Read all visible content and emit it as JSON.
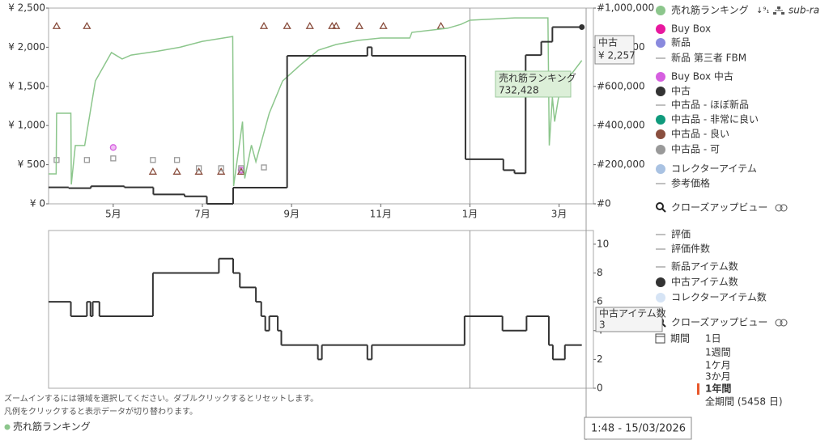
{
  "chart_data": [
    {
      "type": "line",
      "xlim": [
        3.55,
        15.77
      ],
      "xticks": [
        {
          "value": 5,
          "label": "5月"
        },
        {
          "value": 7,
          "label": "7月"
        },
        {
          "value": 9,
          "label": "9月"
        },
        {
          "value": 11,
          "label": "11月"
        },
        {
          "value": 13,
          "label": "1月"
        },
        {
          "value": 15,
          "label": "3月"
        }
      ],
      "x_divider": 13,
      "ylim": [
        0,
        2500
      ],
      "yticks": [
        {
          "value": 0,
          "label": "¥ 0"
        },
        {
          "value": 500,
          "label": "¥ 500"
        },
        {
          "value": 1000,
          "label": "¥ 1,000"
        },
        {
          "value": 1500,
          "label": "¥ 1,500"
        },
        {
          "value": 2000,
          "label": "¥ 2,000"
        },
        {
          "value": 2500,
          "label": "¥ 2,500"
        }
      ],
      "y2lim": [
        0,
        1000000
      ],
      "y2ticks": [
        {
          "value": 0,
          "label": "#0"
        },
        {
          "value": 200000,
          "label": "#200,000"
        },
        {
          "value": 400000,
          "label": "#400,000"
        },
        {
          "value": 600000,
          "label": "#600,000"
        },
        {
          "value": 800000,
          "label": "#800,000"
        },
        {
          "value": 1000000,
          "label": "#1,000,000"
        }
      ],
      "series": [
        {
          "name": "売れ筋ランキング",
          "color": "#8cc68c",
          "legend": "dot",
          "axis": "y2",
          "x": [
            3.55,
            3.72,
            3.73,
            4.05,
            4.06,
            4.15,
            4.36,
            4.6,
            4.96,
            5.2,
            5.4,
            6.0,
            6.5,
            7.0,
            7.68,
            7.7,
            7.9,
            7.95,
            8.1,
            8.2,
            8.5,
            8.8,
            9.2,
            9.6,
            10.0,
            10.5,
            11.0,
            11.65,
            11.7,
            12.5,
            12.8,
            13.0,
            14.0,
            14.75,
            14.78,
            14.85,
            14.9,
            15.0,
            15.2,
            15.51
          ],
          "values": [
            153000,
            153000,
            463000,
            463000,
            99000,
            298000,
            298000,
            628000,
            773000,
            740000,
            760000,
            780000,
            800000,
            830000,
            855000,
            91000,
            420000,
            130000,
            300000,
            215000,
            463000,
            628000,
            710000,
            785000,
            814000,
            835000,
            847000,
            847000,
            876000,
            897000,
            917000,
            938000,
            950000,
            950000,
            298000,
            545000,
            420000,
            560000,
            640000,
            732428
          ]
        },
        {
          "name": "Buy Box",
          "color": "#e8189e",
          "legend": "dot"
        },
        {
          "name": "新品",
          "color": "#8a8ade",
          "legend": "dot"
        },
        {
          "name": "新品 第三者 FBM",
          "color": "#aaaaaa",
          "legend": "line"
        },
        {
          "name": "Buy Box 中古",
          "color": "#d65fe0",
          "legend": "dot",
          "marker": "circle",
          "x": [
            5.0,
            7.87
          ],
          "values": [
            720,
            430
          ]
        },
        {
          "name": "中古",
          "color": "#333333",
          "legend": "dot",
          "step": true,
          "x": [
            3.55,
            4.0,
            4.5,
            5.25,
            5.9,
            6.6,
            7.1,
            7.69,
            8.9,
            10.7,
            10.8,
            12.9,
            13.75,
            14.0,
            14.25,
            14.6,
            14.85,
            15.51
          ],
          "values": [
            210,
            200,
            225,
            210,
            120,
            95,
            0,
            207,
            1890,
            2000,
            1890,
            570,
            430,
            390,
            1900,
            2070,
            2257,
            2257
          ]
        },
        {
          "name": "中古品 - ほぼ新品",
          "color": "#aaaaaa",
          "legend": "line"
        },
        {
          "name": "中古品 - 非常に良い",
          "color": "#0f9a7c",
          "legend": "dot"
        },
        {
          "name": "中古品 - 良い",
          "color": "#8a4f3f",
          "legend": "dot",
          "marker": "triangle",
          "x": [
            3.73,
            4.41,
            5.89,
            6.43,
            6.92,
            7.42,
            7.87,
            8.38,
            8.9,
            9.41,
            9.91,
            10.0,
            10.52,
            11.06,
            12.35
          ],
          "values": [
            2270,
            2270,
            410,
            410,
            410,
            410,
            410,
            2270,
            2270,
            2270,
            2270,
            2270,
            2270,
            2270,
            2270
          ]
        },
        {
          "name": "中古品 - 可",
          "color": "#999999",
          "legend": "dot",
          "marker": "square",
          "x": [
            3.73,
            4.41,
            5.0,
            5.89,
            6.43,
            6.92,
            7.42,
            7.87,
            8.38
          ],
          "values": [
            560,
            560,
            580,
            560,
            560,
            455,
            455,
            455,
            465
          ]
        },
        {
          "name": "コレクターアイテム",
          "color": "#a9c2e2",
          "legend": "dot"
        },
        {
          "name": "参考価格",
          "color": "#aaaaaa",
          "legend": "line"
        }
      ]
    },
    {
      "type": "line",
      "xlim": [
        3.55,
        15.77
      ],
      "x_divider": 13,
      "ylim": [
        0,
        10.95
      ],
      "yticks": [
        0,
        2,
        4,
        6,
        8,
        10
      ],
      "series": [
        {
          "name": "評価",
          "color": "#aaaaaa",
          "legend": "line"
        },
        {
          "name": "評価件数",
          "color": "#aaaaaa",
          "legend": "line"
        },
        {
          "name": "新品アイテム数",
          "color": "#aaaaaa",
          "legend": "line"
        },
        {
          "name": "中古アイテム数",
          "color": "#333333",
          "legend": "dot",
          "step": true,
          "x": [
            3.55,
            4.05,
            4.41,
            4.49,
            4.54,
            4.69,
            5.89,
            7.37,
            7.69,
            7.84,
            8.2,
            8.32,
            8.41,
            8.5,
            8.69,
            8.77,
            9.59,
            9.68,
            10.7,
            10.8,
            12.88,
            13.73,
            14.27,
            14.77,
            14.86,
            15.13,
            15.51
          ],
          "values": [
            6,
            5,
            6,
            5,
            6,
            5,
            8,
            9,
            8,
            7,
            6,
            5,
            4,
            5,
            4,
            3,
            2,
            3,
            2,
            3,
            5,
            4,
            5,
            3,
            2,
            3,
            3
          ]
        },
        {
          "name": "コレクターアイテム数",
          "color": "#d6e4f5",
          "legend": "dot"
        }
      ]
    }
  ],
  "ui": {
    "subcategory": "sub-ra",
    "closeup_top": "クローズアップビュー",
    "closeup_bottom": "クローズアップビュー",
    "period": {
      "label": "期間",
      "options": [
        "1日",
        "1週間",
        "1ケ月",
        "3か月",
        "1年間",
        "全期間 (5458 日)"
      ],
      "selected": 4
    },
    "hints": [
      "ズームインするには領域を選択してください。ダブルクリックするとリセットします。",
      "凡例をクリックすると表示データが切り替わります。"
    ],
    "footer_legend": "売れ筋ランキング",
    "tooltip_used": {
      "title": "中古",
      "value": "¥ 2,257"
    },
    "tooltip_rank": {
      "title": "売れ筋ランキング",
      "value": "732,428"
    },
    "tooltip_count": {
      "title": "中古アイテム数",
      "value": "3"
    },
    "timestamp": "1:48 - 15/03/2026"
  }
}
